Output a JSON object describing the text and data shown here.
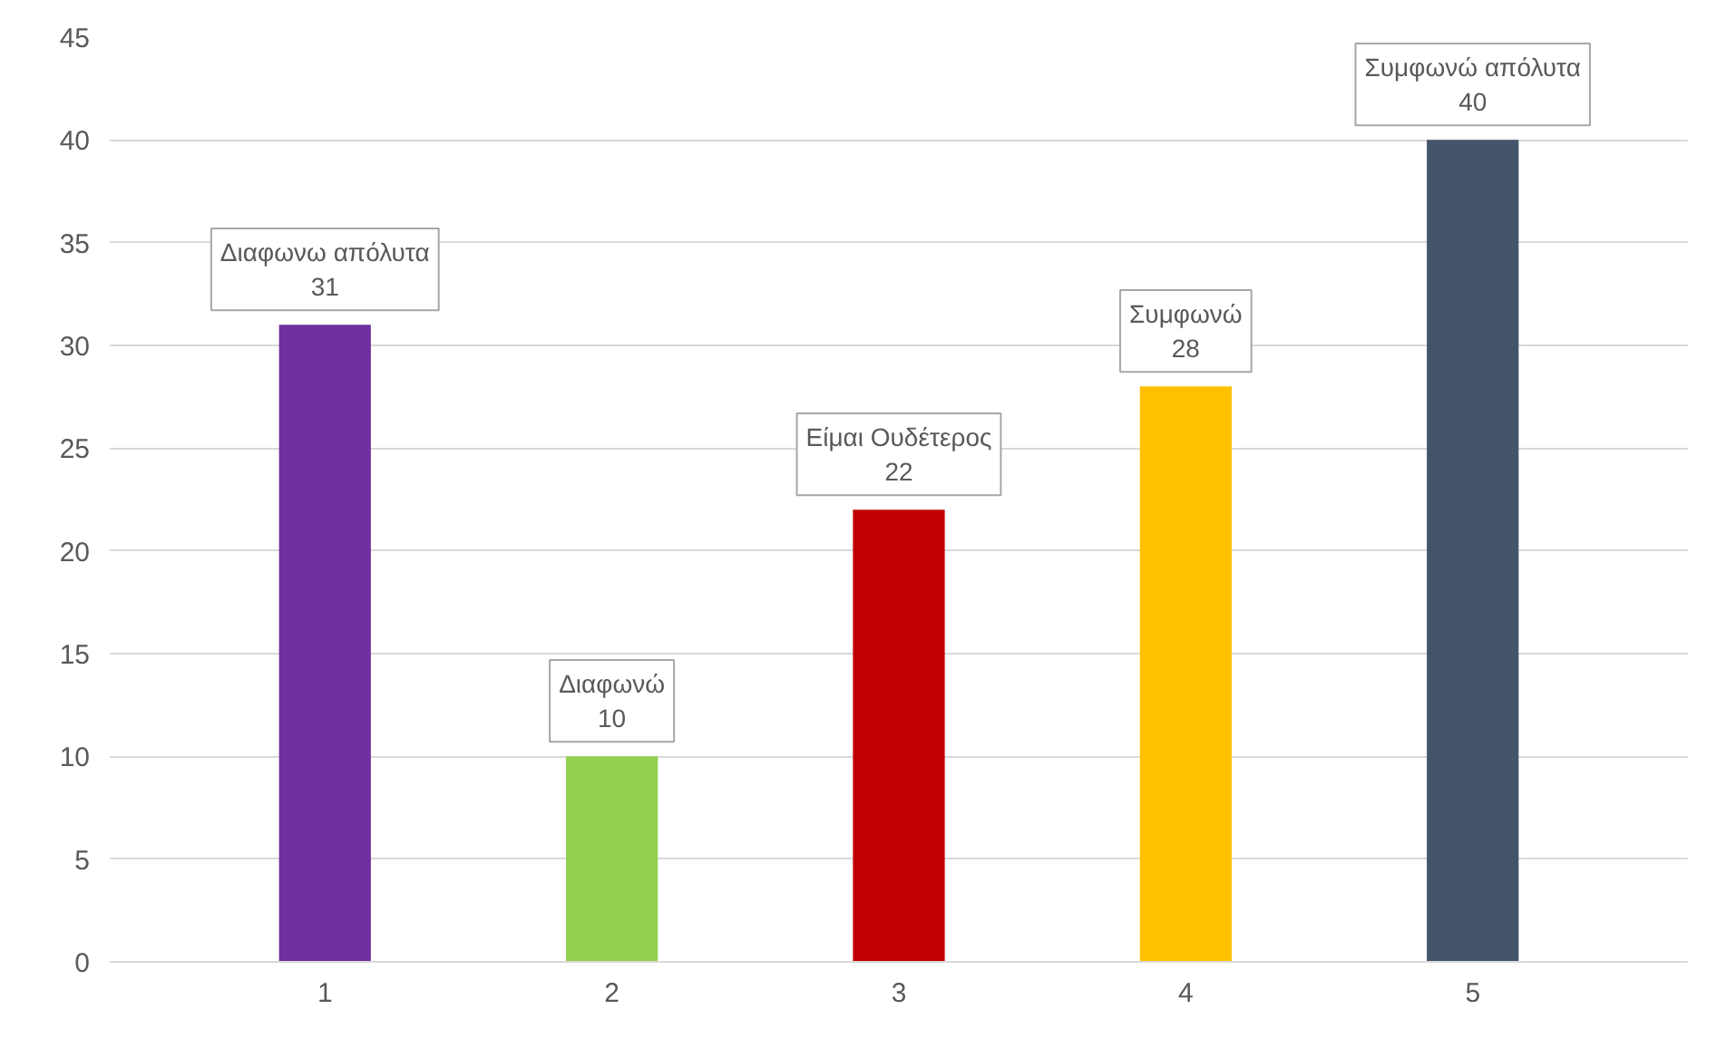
{
  "chart_data": {
    "type": "bar",
    "categories": [
      "1",
      "2",
      "3",
      "4",
      "5"
    ],
    "values": [
      31,
      10,
      22,
      28,
      40
    ],
    "colors": [
      "#7030a0",
      "#92d050",
      "#c00000",
      "#ffc000",
      "#44546a"
    ],
    "ylim": [
      0,
      45
    ],
    "yticks": [
      0,
      5,
      10,
      15,
      20,
      25,
      30,
      35,
      40,
      45
    ],
    "grid": "y",
    "data_labels": true,
    "annotations": [
      {
        "text": "Διαφωνω απόλυτα",
        "x": "1",
        "y": 31
      },
      {
        "text": "Διαφωνώ",
        "x": "2",
        "y": 10
      },
      {
        "text": "Είμαι Ουδέτερος",
        "x": "3",
        "y": 22
      },
      {
        "text": "Συμφωνώ",
        "x": "4",
        "y": 28
      },
      {
        "text": "Συμφωνώ απόλυτα",
        "x": "5",
        "y": 40
      }
    ]
  }
}
